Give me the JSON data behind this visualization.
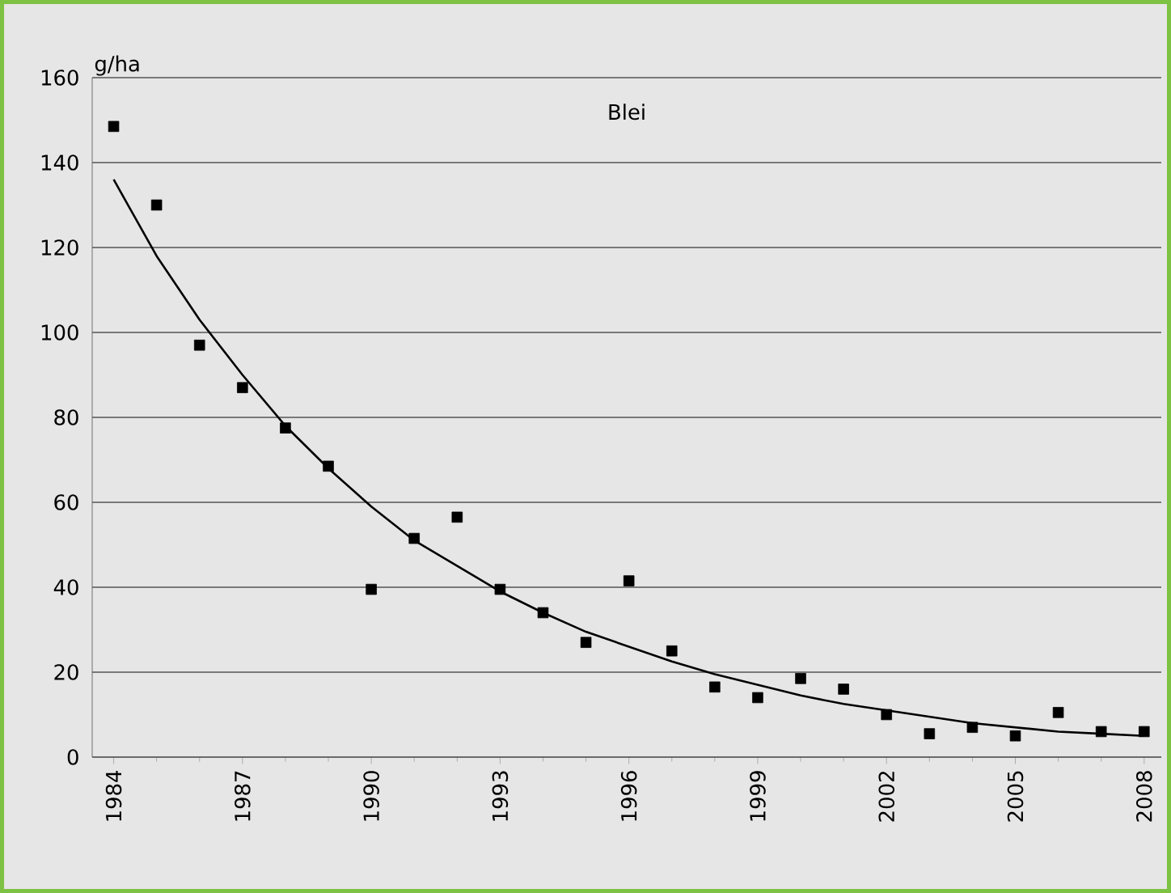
{
  "chart_data": {
    "type": "scatter",
    "title": "Blei",
    "ylabel": "g/ha",
    "series": [
      {
        "color": "#000000",
        "marker": "square",
        "x": [
          1984,
          1985,
          1986,
          1987,
          1988,
          1989,
          1990,
          1991,
          1992,
          1993,
          1994,
          1995,
          1996,
          1997,
          1998,
          1999,
          2000,
          2001,
          2002,
          2003,
          2004,
          2005,
          2006,
          2007,
          2008
        ],
        "values": [
          148.5,
          130,
          97,
          87,
          77.5,
          68.5,
          39.5,
          51.5,
          56.5,
          39.5,
          34,
          27,
          41.5,
          25,
          16.5,
          14,
          18.5,
          16,
          10,
          5.5,
          7,
          5,
          10.5,
          6,
          6
        ]
      },
      {
        "type": "line",
        "color": "#000000",
        "x": [
          1984,
          1985,
          1986,
          1987,
          1988,
          1989,
          1990,
          1991,
          1992,
          1993,
          1994,
          1995,
          1996,
          1997,
          1998,
          1999,
          2000,
          2001,
          2002,
          2003,
          2004,
          2005,
          2006,
          2007,
          2008
        ],
        "values": [
          136,
          118,
          103,
          90,
          78,
          68,
          59,
          51,
          45,
          39,
          34,
          29.5,
          26,
          22.5,
          19.5,
          17,
          14.5,
          12.5,
          11,
          9.5,
          8,
          7,
          6,
          5.5,
          5
        ]
      }
    ],
    "xlim": [
      1983.5,
      2008.4
    ],
    "ylim": [
      0,
      160
    ],
    "xticks": [
      1984,
      1987,
      1990,
      1993,
      1996,
      1999,
      2002,
      2005,
      2008
    ],
    "yticks": [
      0,
      20,
      40,
      60,
      80,
      100,
      120,
      140,
      160
    ],
    "grid": "y"
  }
}
